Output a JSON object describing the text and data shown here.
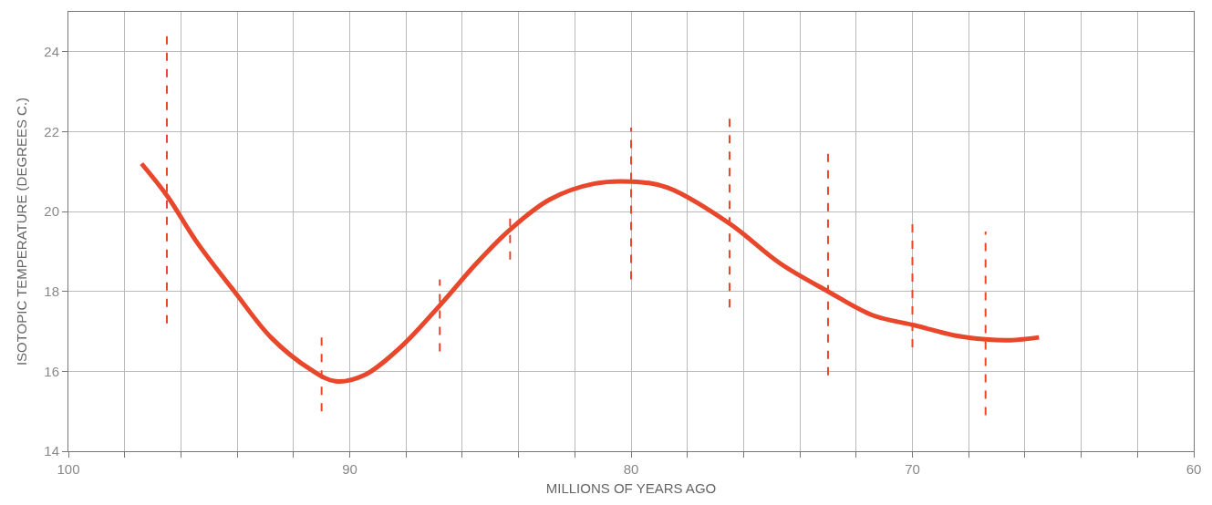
{
  "chart_data": {
    "type": "line",
    "xlabel": "MILLIONS OF YEARS AGO",
    "ylabel": "ISOTOPIC TEMPERATURE (DEGREES C.)",
    "xlim": [
      100,
      60
    ],
    "xticks": [
      100,
      {
        "value": 98,
        "label": null
      },
      {
        "value": 96,
        "label": null
      },
      {
        "value": 94,
        "label": null
      },
      {
        "value": 92,
        "label": null
      },
      90,
      {
        "value": 88,
        "label": null
      },
      {
        "value": 86,
        "label": null
      },
      {
        "value": 84,
        "label": null
      },
      {
        "value": 82,
        "label": null
      },
      80,
      {
        "value": 78,
        "label": null
      },
      {
        "value": 76,
        "label": null
      },
      {
        "value": 74,
        "label": null
      },
      {
        "value": 72,
        "label": null
      },
      70,
      {
        "value": 68,
        "label": null
      },
      {
        "value": 66,
        "label": null
      },
      {
        "value": 64,
        "label": null
      },
      {
        "value": 62,
        "label": null
      },
      60
    ],
    "ylim": [
      14,
      25
    ],
    "yticks": [
      14,
      16,
      18,
      20,
      22,
      24
    ],
    "grid": true,
    "series": [
      {
        "color": "#e8472b",
        "line_style": "solid",
        "marker": "none",
        "x": [
          97.4,
          96.5,
          95.4,
          94.1,
          92.8,
          91.4,
          90.5,
          89.5,
          88.2,
          86.8,
          85.5,
          84.3,
          82.9,
          81.3,
          80.0,
          78.7,
          76.5,
          74.7,
          73.0,
          71.4,
          69.9,
          68.5,
          67.4,
          66.5,
          65.5
        ],
        "values": [
          21.2,
          20.4,
          19.2,
          18.0,
          16.85,
          16.05,
          15.75,
          15.9,
          16.6,
          17.65,
          18.7,
          19.55,
          20.3,
          20.7,
          20.75,
          20.6,
          19.7,
          18.7,
          18.0,
          17.4,
          17.15,
          16.9,
          16.8,
          16.78,
          16.85
        ]
      },
      {
        "type": "line",
        "color": "#e8472b",
        "line_style": "dashed",
        "marker": "none",
        "x": [
          96.5,
          96.5,
          null,
          91.0,
          91.0,
          null,
          86.8,
          86.8,
          null,
          84.3,
          84.3,
          null,
          80.0,
          80.0,
          null,
          76.5,
          76.5,
          null,
          73.0,
          73.0,
          null,
          70.0,
          70.0,
          null,
          67.4,
          67.4
        ],
        "values": [
          17.2,
          24.5,
          null,
          15.0,
          17.0,
          null,
          16.5,
          18.3,
          null,
          18.8,
          19.9,
          null,
          18.3,
          22.1,
          null,
          17.6,
          22.4,
          null,
          15.9,
          21.5,
          null,
          16.6,
          19.8,
          null,
          14.9,
          19.5
        ]
      }
    ]
  }
}
